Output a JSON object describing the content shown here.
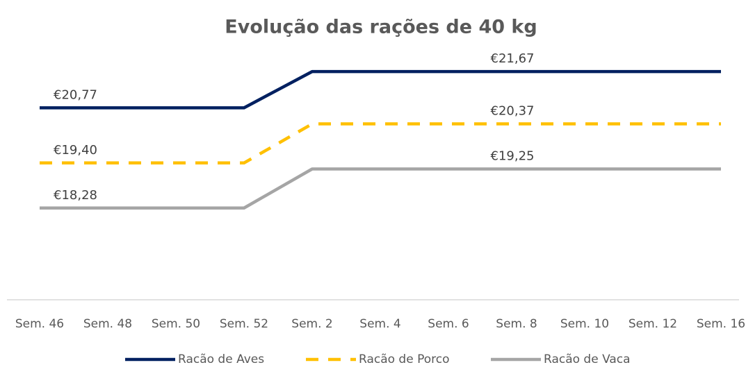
{
  "chart_data": {
    "type": "line",
    "title": "Evolução das rações de 40 kg",
    "categories": [
      "Sem. 46",
      "Sem. 48",
      "Sem. 50",
      "Sem. 52",
      "Sem. 2",
      "Sem. 4",
      "Sem. 6",
      "Sem. 8",
      "Sem. 10",
      "Sem. 12",
      "Sem. 16"
    ],
    "ylim": [
      16,
      22
    ],
    "legend": "bottom",
    "series": [
      {
        "name": "Racão de Aves",
        "color": "#002060",
        "dashed": false,
        "values": [
          20.77,
          20.77,
          20.77,
          20.77,
          21.67,
          21.67,
          21.67,
          21.67,
          21.67,
          21.67,
          21.67
        ],
        "value_labels": [
          "€20,77",
          null,
          null,
          null,
          null,
          null,
          null,
          "€21,67",
          null,
          null,
          null
        ]
      },
      {
        "name": "Racão de Porco",
        "color": "#ffc000",
        "dashed": true,
        "values": [
          19.4,
          19.4,
          19.4,
          19.4,
          20.37,
          20.37,
          20.37,
          20.37,
          20.37,
          20.37,
          20.37
        ],
        "value_labels": [
          "€19,40",
          null,
          null,
          null,
          null,
          null,
          null,
          "€20,37",
          null,
          null,
          null
        ]
      },
      {
        "name": "Racão de Vaca",
        "color": "#a5a5a5",
        "dashed": false,
        "values": [
          18.28,
          18.28,
          18.28,
          18.28,
          19.25,
          19.25,
          19.25,
          19.25,
          19.25,
          19.25,
          19.25
        ],
        "value_labels": [
          "€18,28",
          null,
          null,
          null,
          null,
          null,
          null,
          "€19,25",
          null,
          null,
          null
        ]
      }
    ]
  }
}
